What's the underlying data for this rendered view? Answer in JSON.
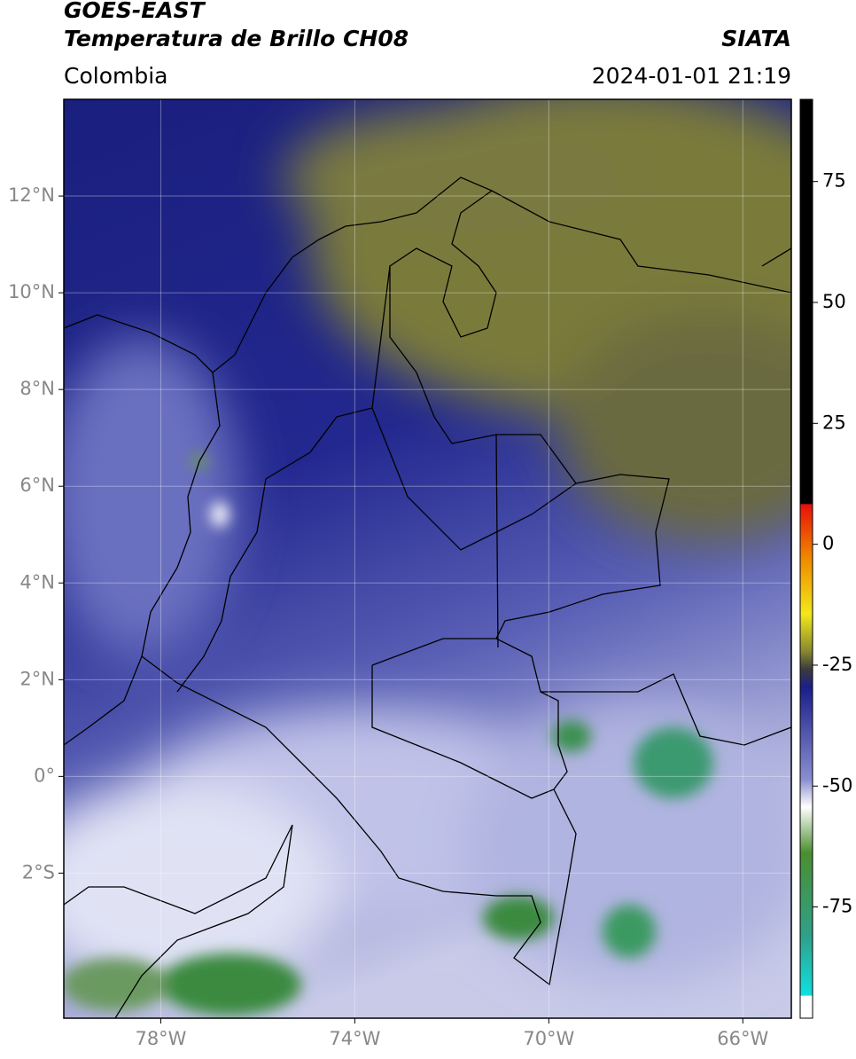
{
  "header": {
    "title": "GOES-EAST",
    "subtitle": "Temperatura de Brillo CH08",
    "source": "SIATA",
    "region": "Colombia",
    "datetime": "2024-01-01 21:19"
  },
  "map": {
    "xlim": [
      -80,
      -65
    ],
    "ylim": [
      -5,
      14
    ],
    "xticks": [
      {
        "value": -78,
        "label": "78°W"
      },
      {
        "value": -74,
        "label": "74°W"
      },
      {
        "value": -70,
        "label": "70°W"
      },
      {
        "value": -66,
        "label": "66°W"
      }
    ],
    "yticks": [
      {
        "value": 12,
        "label": "12°N"
      },
      {
        "value": 10,
        "label": "10°N"
      },
      {
        "value": 8,
        "label": "8°N"
      },
      {
        "value": 6,
        "label": "6°N"
      },
      {
        "value": 4,
        "label": "4°N"
      },
      {
        "value": 2,
        "label": "2°N"
      },
      {
        "value": 0,
        "label": "0°"
      },
      {
        "value": -2,
        "label": "2°S"
      }
    ],
    "grid": true
  },
  "colorbar": {
    "lim": [
      -98,
      92
    ],
    "ticks": [
      75,
      50,
      25,
      0,
      -25,
      -50,
      -75
    ]
  }
}
